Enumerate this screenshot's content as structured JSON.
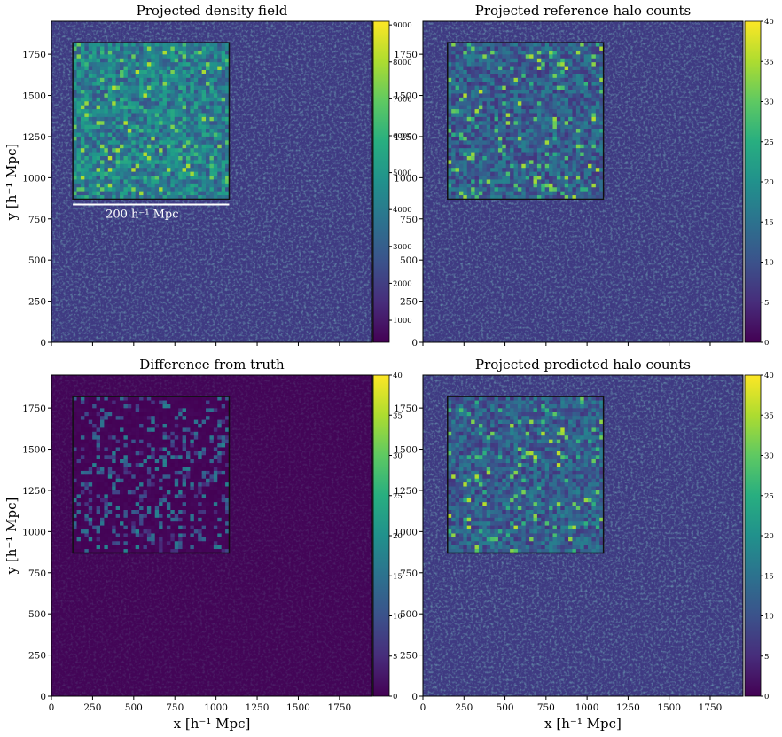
{
  "chart_data": [
    {
      "type": "heatmap",
      "title": "Projected density field",
      "xlabel": "",
      "ylabel": "y [h⁻¹  Mpc]",
      "xlim": [
        0,
        1950
      ],
      "ylim": [
        0,
        1950
      ],
      "xticks": [
        0,
        250,
        500,
        750,
        1000,
        1250,
        1500,
        1750
      ],
      "yticks": [
        0,
        250,
        500,
        750,
        1000,
        1250,
        1500,
        1750
      ],
      "colorbar": {
        "colormap": "viridis",
        "range": [
          400,
          9100
        ],
        "ticks": [
          1000,
          2000,
          3000,
          4000,
          5000,
          6000,
          7000,
          8000,
          9000
        ]
      },
      "inset": {
        "x_range": [
          130,
          1080
        ],
        "y_range": [
          870,
          1820
        ]
      },
      "scalebar_label": "200 h⁻¹ Mpc"
    },
    {
      "type": "heatmap",
      "title": "Projected reference halo counts",
      "xlabel": "",
      "ylabel": "",
      "xlim": [
        0,
        1950
      ],
      "ylim": [
        0,
        1950
      ],
      "xticks": [
        0,
        250,
        500,
        750,
        1000,
        1250,
        1500,
        1750
      ],
      "yticks": [
        0,
        250,
        500,
        750,
        1000,
        1250,
        1500,
        1750
      ],
      "colorbar": {
        "colormap": "viridis",
        "range": [
          0,
          40
        ],
        "ticks": [
          0,
          5,
          10,
          15,
          20,
          25,
          30,
          35,
          40
        ]
      },
      "inset": {
        "x_range": [
          150,
          1100
        ],
        "y_range": [
          870,
          1820
        ]
      }
    },
    {
      "type": "heatmap",
      "title": "Difference from truth",
      "xlabel": "x [h⁻¹  Mpc]",
      "ylabel": "y [h⁻¹  Mpc]",
      "xlim": [
        0,
        1950
      ],
      "ylim": [
        0,
        1950
      ],
      "xticks": [
        0,
        250,
        500,
        750,
        1000,
        1250,
        1500,
        1750
      ],
      "yticks": [
        0,
        250,
        500,
        750,
        1000,
        1250,
        1500,
        1750
      ],
      "colorbar": {
        "colormap": "viridis",
        "range": [
          0,
          40
        ],
        "ticks": [
          0,
          5,
          10,
          15,
          20,
          25,
          30,
          35,
          40
        ]
      },
      "inset": {
        "x_range": [
          130,
          1080
        ],
        "y_range": [
          870,
          1820
        ]
      }
    },
    {
      "type": "heatmap",
      "title": "Projected predicted halo counts",
      "xlabel": "x [h⁻¹  Mpc]",
      "ylabel": "",
      "xlim": [
        0,
        1950
      ],
      "ylim": [
        0,
        1950
      ],
      "xticks": [
        0,
        250,
        500,
        750,
        1000,
        1250,
        1500,
        1750
      ],
      "yticks": [
        0,
        250,
        500,
        750,
        1000,
        1250,
        1500,
        1750
      ],
      "colorbar": {
        "colormap": "viridis",
        "range": [
          0,
          40
        ],
        "ticks": [
          0,
          5,
          10,
          15,
          20,
          25,
          30,
          35,
          40
        ]
      },
      "inset": {
        "x_range": [
          150,
          1100
        ],
        "y_range": [
          870,
          1820
        ]
      }
    }
  ]
}
